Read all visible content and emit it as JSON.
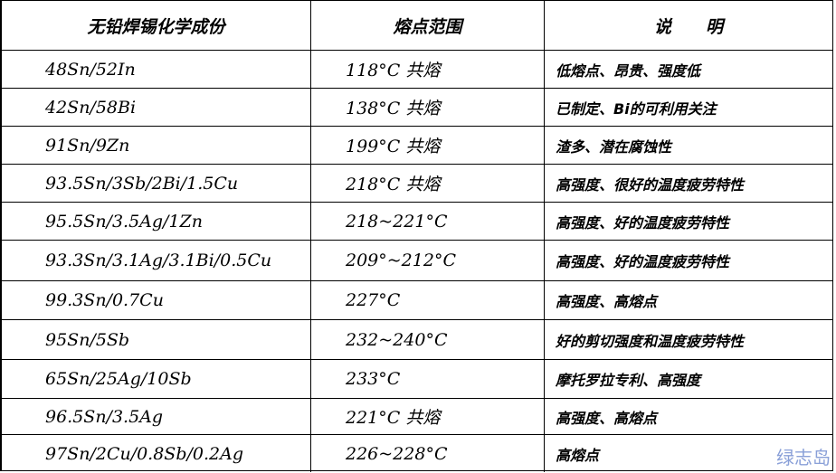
{
  "headers": [
    "无铅焊锡化学成份",
    "熔点范围",
    "说　　明"
  ],
  "rows": [
    {
      "composition": "48Sn/52In",
      "melting": "118°C 共熔",
      "description": "低熔点、昂贵、强度低"
    },
    {
      "composition": "42Sn/58Bi",
      "melting": "138°C 共熔",
      "description": "已制定、Bi的可利用关注"
    },
    {
      "composition": "91Sn/9Zn",
      "melting": "199°C 共熔",
      "description": "渣多、潜在腐蚀性"
    },
    {
      "composition": "93.5Sn/3Sb/2Bi/1.5Cu",
      "melting": "218°C 共熔",
      "description": "高强度、很好的温度疲劳特性"
    },
    {
      "composition": "95.5Sn/3.5Ag/1Zn",
      "melting": "218~221°C",
      "description": "高强度、好的温度疲劳特性"
    },
    {
      "composition": "93.3Sn/3.1Ag/3.1Bi/0.5Cu",
      "melting": "209°~212°C",
      "description": "高强度、好的温度疲劳特性"
    },
    {
      "composition": "99.3Sn/0.7Cu",
      "melting": "227°C",
      "description": "高强度、高熔点"
    },
    {
      "composition": "95Sn/5Sb",
      "melting": "232~240°C",
      "description": "好的剪切强度和温度疲劳特性"
    },
    {
      "composition": "65Sn/25Ag/10Sb",
      "melting": "233°C",
      "description": "摩托罗拉专利、高强度"
    },
    {
      "composition": "96.5Sn/3.5Ag",
      "melting": "221°C 共熔",
      "description": "高强度、高熔点"
    },
    {
      "composition": "97Sn/2Cu/0.8Sb/0.2Ag",
      "melting": "226~228°C",
      "description": "高熔点"
    }
  ],
  "watermark": "绿志岛"
}
